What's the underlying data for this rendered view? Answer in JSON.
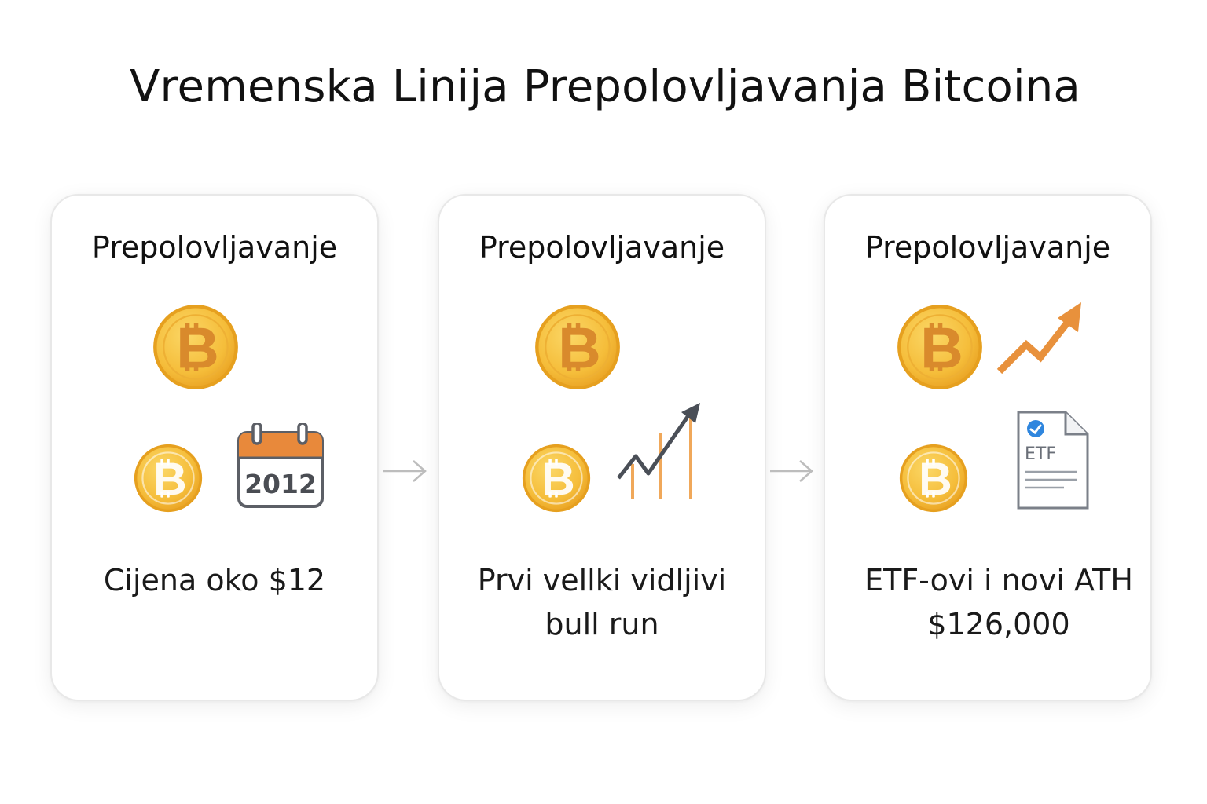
{
  "title": "Vremenska Linija Prepolovljavanja Bitcoina",
  "cards": [
    {
      "heading": "Prepolovljavanje",
      "text": "Cijena oko $12",
      "calendar_year": "2012",
      "icons": [
        "bitcoin-coin-large",
        "bitcoin-coin-small",
        "calendar-icon"
      ]
    },
    {
      "heading": "Prepolovljavanje",
      "text": "Prvi vellki vidljivi\nbull run",
      "icons": [
        "bitcoin-coin-large",
        "bitcoin-coin-small",
        "rising-chart-icon"
      ]
    },
    {
      "heading": "Prepolovljavanje",
      "text": "ETF-ovi i novi ATH\n$126,000",
      "document_label": "ETF",
      "icons": [
        "bitcoin-coin-large",
        "trend-up-arrow",
        "bitcoin-coin-small",
        "etf-document-icon"
      ]
    }
  ],
  "colors": {
    "coin_outer": "#e9a21f",
    "coin_inner": "#f7c542",
    "coin_symbol": "#d9822b",
    "calendar_header": "#e8893b",
    "chart_bars": "#f0a85a",
    "chart_line": "#4a4f57",
    "trend_arrow": "#e8913c",
    "check_badge": "#2f86de",
    "flow_arrow": "#bdbdbd"
  }
}
